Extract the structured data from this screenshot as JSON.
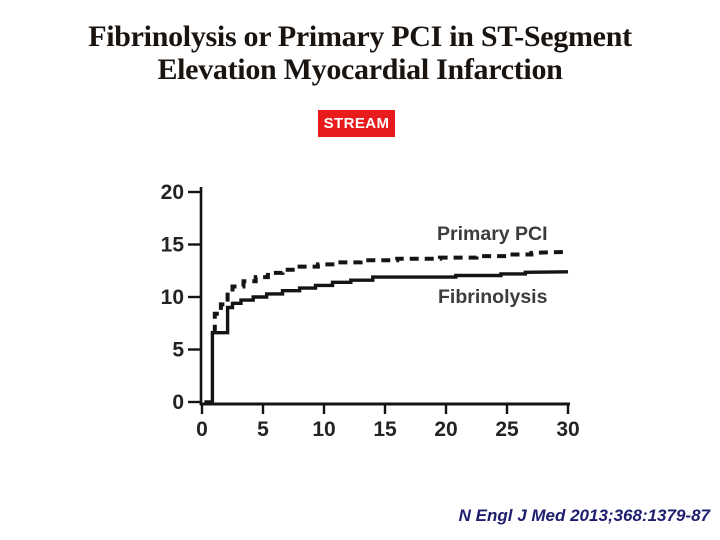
{
  "slide": {
    "title": {
      "line1": "Fibrinolysis or Primary PCI in ST-Segment",
      "line2": "Elevation Myocardial Infarction",
      "color": "#1a1410"
    },
    "badge": {
      "label": "STREAM",
      "bg_color": "#e81c1c",
      "text_color": "#ffffff"
    },
    "citation": {
      "text": "N Engl J Med 2013;368:1379-87",
      "color": "#1e1e6e"
    }
  },
  "chart_data": {
    "type": "line",
    "subtype": "kaplan-meier-step",
    "title": "",
    "xlabel": "",
    "ylabel": "",
    "xlim": [
      0,
      30
    ],
    "ylim": [
      0,
      20
    ],
    "xticks": [
      0,
      5,
      10,
      15,
      20,
      25,
      30
    ],
    "yticks": [
      0,
      5,
      10,
      15,
      20
    ],
    "grid": false,
    "legend_position": "inline-labels",
    "line_color": "#141414",
    "tick_label_color": "#232323",
    "series_label_color": "#3c3c3c",
    "series": [
      {
        "name": "Primary PCI",
        "line_style": "dashed",
        "points": [
          [
            1.05,
            6.5
          ],
          [
            1.05,
            8.4
          ],
          [
            1.55,
            8.4
          ],
          [
            1.55,
            9.3
          ],
          [
            2.1,
            9.3
          ],
          [
            2.1,
            10.5
          ],
          [
            2.5,
            10.5
          ],
          [
            2.5,
            11.0
          ],
          [
            3.4,
            11.0
          ],
          [
            3.4,
            11.5
          ],
          [
            4.4,
            11.5
          ],
          [
            4.4,
            11.9
          ],
          [
            5.4,
            11.9
          ],
          [
            5.4,
            12.3
          ],
          [
            6.6,
            12.3
          ],
          [
            6.6,
            12.6
          ],
          [
            8.0,
            12.6
          ],
          [
            8.0,
            12.9
          ],
          [
            9.5,
            12.9
          ],
          [
            9.5,
            13.1
          ],
          [
            11.0,
            13.1
          ],
          [
            11.0,
            13.3
          ],
          [
            13.0,
            13.3
          ],
          [
            13.0,
            13.5
          ],
          [
            16.0,
            13.5
          ],
          [
            16.0,
            13.65
          ],
          [
            19.5,
            13.65
          ],
          [
            19.5,
            13.75
          ],
          [
            22.5,
            13.75
          ],
          [
            22.5,
            13.9
          ],
          [
            25.0,
            13.9
          ],
          [
            25.0,
            14.05
          ],
          [
            27.0,
            14.05
          ],
          [
            27.0,
            14.2
          ],
          [
            30.0,
            14.3
          ]
        ]
      },
      {
        "name": "Fibrinolysis",
        "line_style": "solid",
        "points": [
          [
            0.2,
            0
          ],
          [
            0.85,
            0
          ],
          [
            0.85,
            6.6
          ],
          [
            2.1,
            6.6
          ],
          [
            2.1,
            9.0
          ],
          [
            2.5,
            9.0
          ],
          [
            2.5,
            9.4
          ],
          [
            3.2,
            9.4
          ],
          [
            3.2,
            9.7
          ],
          [
            4.2,
            9.7
          ],
          [
            4.2,
            10.0
          ],
          [
            5.3,
            10.0
          ],
          [
            5.3,
            10.3
          ],
          [
            6.6,
            10.3
          ],
          [
            6.6,
            10.6
          ],
          [
            8.0,
            10.6
          ],
          [
            8.0,
            10.85
          ],
          [
            9.3,
            10.85
          ],
          [
            9.3,
            11.1
          ],
          [
            10.7,
            11.1
          ],
          [
            10.7,
            11.4
          ],
          [
            12.2,
            11.4
          ],
          [
            12.2,
            11.6
          ],
          [
            14.0,
            11.6
          ],
          [
            14.0,
            11.9
          ],
          [
            20.8,
            11.9
          ],
          [
            20.8,
            12.05
          ],
          [
            24.5,
            12.05
          ],
          [
            24.5,
            12.2
          ],
          [
            26.5,
            12.2
          ],
          [
            26.5,
            12.35
          ],
          [
            30.0,
            12.4
          ]
        ]
      }
    ]
  }
}
